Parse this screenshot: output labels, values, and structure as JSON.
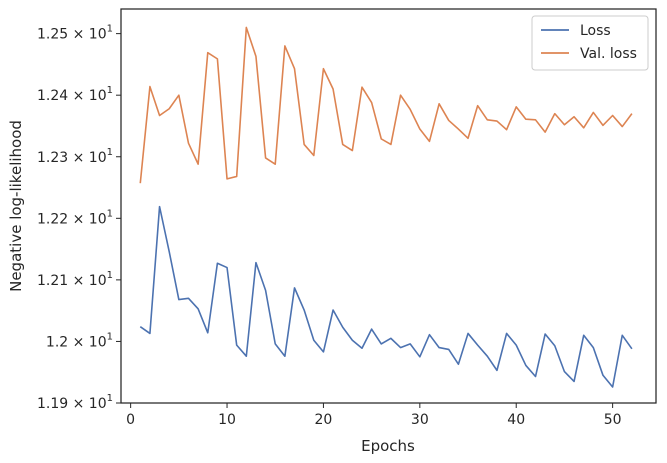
{
  "chart_data": {
    "type": "line",
    "xlabel": "Epochs",
    "ylabel": "Negative log-likelihood",
    "xlim": [
      -1,
      54.5
    ],
    "ylim": [
      11.9,
      12.54
    ],
    "xticks": [
      0,
      10,
      20,
      30,
      40,
      50
    ],
    "xtick_labels": [
      "0",
      "10",
      "20",
      "30",
      "40",
      "50"
    ],
    "yticks": [
      11.9,
      12.0,
      12.1,
      12.2,
      12.3,
      12.4,
      12.5
    ],
    "ytick_labels": [
      {
        "mantissa": "1.19",
        "exponent": "1"
      },
      {
        "mantissa": "1.2",
        "exponent": "1"
      },
      {
        "mantissa": "1.21",
        "exponent": "1"
      },
      {
        "mantissa": "1.22",
        "exponent": "1"
      },
      {
        "mantissa": "1.23",
        "exponent": "1"
      },
      {
        "mantissa": "1.24",
        "exponent": "1"
      },
      {
        "mantissa": "1.25",
        "exponent": "1"
      }
    ],
    "grid": false,
    "legend_position": "top-right",
    "x": [
      1,
      2,
      3,
      4,
      5,
      6,
      7,
      8,
      9,
      10,
      11,
      12,
      13,
      14,
      15,
      16,
      17,
      18,
      19,
      20,
      21,
      22,
      23,
      24,
      25,
      26,
      27,
      28,
      29,
      30,
      31,
      32,
      33,
      34,
      35,
      36,
      37,
      38,
      39,
      40,
      41,
      42,
      43,
      44,
      45,
      46,
      47,
      48,
      49,
      50,
      51,
      52
    ],
    "series": [
      {
        "name": "Loss",
        "color": "#4c72b0",
        "values": [
          12.024,
          12.013,
          12.219,
          12.146,
          12.068,
          12.07,
          12.053,
          12.014,
          12.127,
          12.12,
          11.994,
          11.976,
          12.128,
          12.083,
          11.996,
          11.976,
          12.087,
          12.051,
          12.002,
          11.983,
          12.051,
          12.023,
          12.002,
          11.989,
          12.02,
          11.996,
          12.005,
          11.99,
          11.996,
          11.975,
          12.011,
          11.99,
          11.987,
          11.963,
          12.013,
          11.994,
          11.976,
          11.953,
          12.013,
          11.994,
          11.961,
          11.943,
          12.012,
          11.993,
          11.951,
          11.935,
          12.01,
          11.99,
          11.945,
          11.926,
          12.01,
          11.988
        ]
      },
      {
        "name": "Val. loss",
        "color": "#dd8452",
        "values": [
          12.257,
          12.414,
          12.367,
          12.378,
          12.4,
          12.322,
          12.288,
          12.469,
          12.459,
          12.264,
          12.268,
          12.51,
          12.463,
          12.298,
          12.288,
          12.48,
          12.443,
          12.32,
          12.302,
          12.443,
          12.41,
          12.32,
          12.31,
          12.413,
          12.388,
          12.329,
          12.32,
          12.4,
          12.377,
          12.345,
          12.325,
          12.386,
          12.359,
          12.345,
          12.33,
          12.383,
          12.36,
          12.358,
          12.344,
          12.381,
          12.361,
          12.36,
          12.34,
          12.37,
          12.352,
          12.365,
          12.347,
          12.372,
          12.351,
          12.367,
          12.349,
          12.37
        ]
      }
    ]
  }
}
